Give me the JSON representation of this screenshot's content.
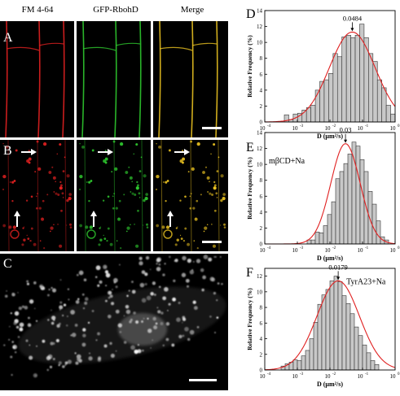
{
  "columns": [
    "FM 4-64",
    "GFP-RbohD",
    "Merge"
  ],
  "micrograph_panels": {
    "A": {
      "letter": "A"
    },
    "B": {
      "letter": "B"
    },
    "C": {
      "letter": "C"
    }
  },
  "colors": {
    "red_channel": "#e02020",
    "green_channel": "#2ec82e",
    "merge_channel": "#e8c020",
    "fit_curve": "#e02020",
    "bar_fill": "#c8c8c8",
    "bar_stroke": "#333333"
  },
  "chart_data": [
    {
      "panel": "D",
      "type": "bar",
      "annotation": "",
      "peak_label": "0.0484",
      "ylabel": "Relative Frequency (%)",
      "xlabel": "D (μm²/s)",
      "x_log_range": [
        -4,
        0
      ],
      "xticks": [
        {
          "sup": "-4",
          "value": -4
        },
        {
          "sup": "-3",
          "value": -3
        },
        {
          "sup": "-2",
          "value": -2
        },
        {
          "sup": "-1",
          "value": -1
        },
        {
          "sup": "0",
          "value": 0
        }
      ],
      "yticks": [
        0,
        2,
        4,
        6,
        8,
        10,
        12,
        14
      ],
      "ylim": [
        0,
        14
      ],
      "bin_edges_log": [
        -3.4,
        0
      ],
      "values": [
        0.9,
        0.3,
        1.0,
        1.1,
        1.5,
        1.8,
        2.1,
        4.0,
        5.1,
        5.3,
        6.1,
        8.6,
        8.2,
        10.7,
        10.9,
        10.6,
        10.9,
        12.3,
        10.6,
        8.6,
        7.6,
        5.3,
        4.3,
        2.1,
        1.0
      ],
      "fit": {
        "peak": -1.315,
        "amp": 11.3,
        "sigma": 0.7
      }
    },
    {
      "panel": "E",
      "type": "bar",
      "annotation": "mβCD+Na",
      "peak_label": "0.03",
      "ylabel": "Relative Frequency (%)",
      "xlabel": "D (μm²/s)",
      "x_log_range": [
        -4,
        0
      ],
      "xticks": [
        {
          "sup": "-4",
          "value": -4
        },
        {
          "sup": "-3",
          "value": -3
        },
        {
          "sup": "-2",
          "value": -2
        },
        {
          "sup": "-1",
          "value": -1
        },
        {
          "sup": "0",
          "value": 0
        }
      ],
      "yticks": [
        0,
        2,
        4,
        6,
        8,
        10,
        12,
        14
      ],
      "ylim": [
        0,
        14
      ],
      "bin_edges_log": [
        -2.7,
        -0.2
      ],
      "values": [
        0.5,
        0.5,
        1.5,
        1.4,
        2.3,
        3.7,
        5.3,
        8.2,
        9.1,
        10.1,
        11.3,
        12.8,
        12.3,
        10.6,
        9.1,
        6.6,
        5.0,
        2.9,
        0.9,
        0.5
      ],
      "fit": {
        "peak": -1.523,
        "amp": 12.6,
        "sigma": 0.45
      }
    },
    {
      "panel": "F",
      "type": "bar",
      "annotation": "TyrA23+Na",
      "peak_label": "0.0179",
      "ylabel": "Relative Frequency (%)",
      "xlabel": "D (μm²/s)",
      "x_log_range": [
        -4,
        0
      ],
      "xticks": [
        {
          "sup": "-4",
          "value": -4
        },
        {
          "sup": "-3",
          "value": -3
        },
        {
          "sup": "-2",
          "value": -2
        },
        {
          "sup": "-1",
          "value": -1
        },
        {
          "sup": "0",
          "value": 0
        }
      ],
      "yticks": [
        0,
        2,
        4,
        6,
        8,
        10,
        12
      ],
      "ylim": [
        0,
        13
      ],
      "bin_edges_log": [
        -3.5,
        -0.5
      ],
      "values": [
        0.5,
        0.8,
        1.0,
        1.3,
        1.2,
        1.8,
        2.5,
        4.0,
        6.1,
        8.4,
        9.6,
        10.3,
        11.4,
        12.0,
        11.3,
        9.5,
        8.5,
        7.2,
        5.5,
        4.4,
        3.2,
        2.2,
        1.2,
        0.7
      ],
      "fit": {
        "peak": -1.747,
        "amp": 11.4,
        "sigma": 0.65
      }
    }
  ]
}
